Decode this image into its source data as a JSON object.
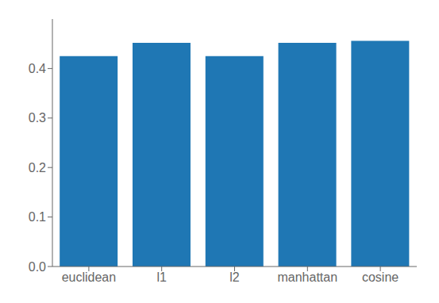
{
  "chart_data": {
    "type": "bar",
    "categories": [
      "euclidean",
      "l1",
      "l2",
      "manhattan",
      "cosine"
    ],
    "values": [
      0.425,
      0.452,
      0.425,
      0.452,
      0.456
    ],
    "color": "#1f77b4",
    "ylim": [
      0.0,
      0.5
    ],
    "yticks": [
      {
        "value": 0.0,
        "label": "0.0"
      },
      0.1,
      0.2,
      0.3,
      0.4
    ],
    "grid": false
  }
}
